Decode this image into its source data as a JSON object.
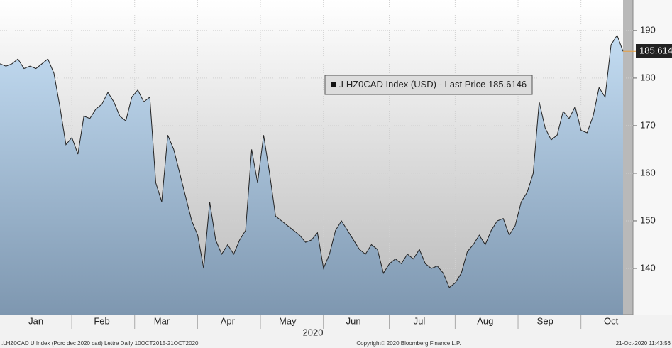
{
  "chart_data": {
    "type": "area",
    "legend_text": ".LHZ0CAD Index (USD) - Last Price 185.6146",
    "last_price_label": "185.614",
    "x_axis_year": "2020",
    "footer_left": ".LHZ0CAD U Index (Porc dec 2020 cad) Lettre  Daily 10OCT2015-21OCT2020",
    "footer_center": "Copyright© 2020 Bloomberg Finance L.P.",
    "footer_right": "21-Oct-2020 11:43:56",
    "categories": [
      null,
      null,
      null,
      null,
      null,
      null,
      "Jan",
      null,
      null,
      null,
      null,
      null,
      null,
      null,
      null,
      null,
      null,
      "Feb",
      null,
      null,
      null,
      null,
      null,
      null,
      null,
      null,
      null,
      "Mar",
      null,
      null,
      null,
      null,
      null,
      null,
      null,
      null,
      null,
      null,
      "Apr",
      null,
      null,
      null,
      null,
      null,
      null,
      null,
      null,
      null,
      "May",
      null,
      null,
      null,
      null,
      null,
      null,
      null,
      null,
      null,
      null,
      "Jun",
      null,
      null,
      null,
      null,
      null,
      null,
      null,
      null,
      null,
      null,
      "Jul",
      null,
      null,
      null,
      null,
      null,
      null,
      null,
      null,
      null,
      null,
      "Aug",
      null,
      null,
      null,
      null,
      null,
      null,
      null,
      null,
      null,
      "Sep",
      null,
      null,
      null,
      null,
      null,
      null,
      null,
      null,
      null,
      null,
      "Oct",
      null,
      null
    ],
    "series": [
      {
        "name": ".LHZ0CAD Index (USD)",
        "color": "#222222",
        "values": [
          183,
          182.5,
          183,
          184,
          182,
          182.5,
          182,
          183,
          184,
          181,
          174,
          166,
          167.5,
          164,
          172,
          171.5,
          173.5,
          174.5,
          177,
          175,
          172,
          171,
          176,
          177.5,
          175,
          176,
          158,
          154,
          168,
          165,
          160,
          155,
          150,
          147,
          140,
          154,
          146,
          143,
          145,
          143,
          146,
          148,
          165,
          158,
          168,
          160,
          151,
          150,
          149,
          148,
          147,
          145.5,
          146,
          147.5,
          140,
          143,
          148,
          150,
          148,
          146,
          144,
          143,
          145,
          144,
          139,
          141,
          142,
          141,
          143,
          142,
          144,
          141,
          140,
          140.5,
          139,
          136,
          137,
          139,
          143.5,
          145,
          147,
          145,
          148,
          150,
          150.5,
          147,
          149,
          154,
          156,
          160,
          175,
          169.5,
          167,
          168,
          173,
          171.5,
          174,
          169,
          168.5,
          172,
          178,
          176,
          187,
          189,
          185.6146
        ]
      }
    ],
    "ylim": [
      130.3,
      196.4
    ],
    "yticks": [
      140,
      150,
      160,
      170,
      180,
      190
    ],
    "grid": true
  }
}
